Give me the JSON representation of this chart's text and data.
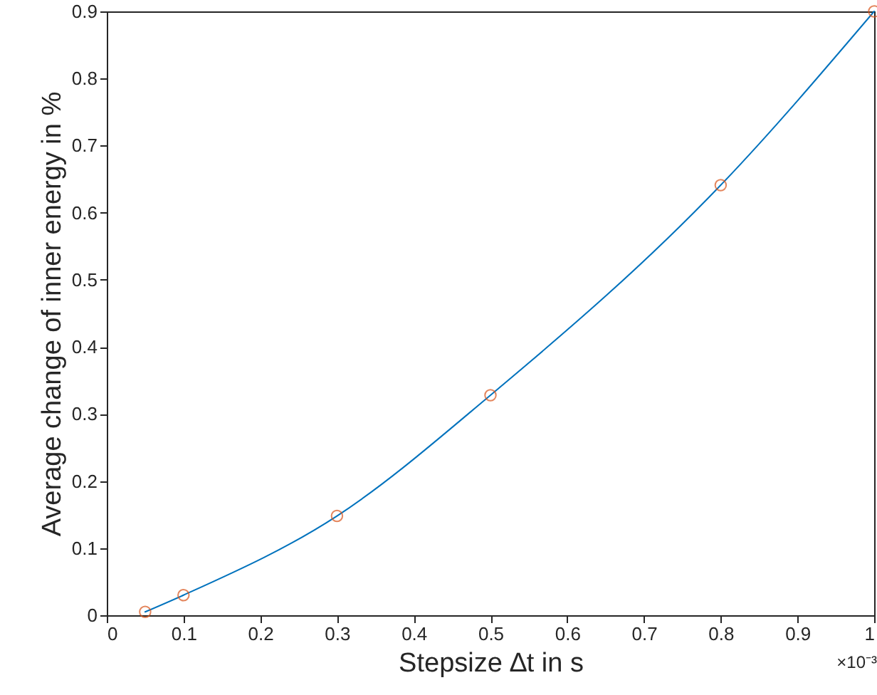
{
  "chart_data": {
    "type": "line",
    "xlabel": "Stepsize ∆t in s",
    "ylabel": "Average change of inner energy in %",
    "x": [
      0.05,
      0.1,
      0.3,
      0.5,
      0.8,
      1.0
    ],
    "series": [
      {
        "type": "line",
        "color": "#0072bd",
        "marker": "none",
        "values": [
          0.005,
          0.03,
          0.148,
          0.328,
          0.641,
          0.9
        ]
      },
      {
        "type": "scatter",
        "color": "#d95319",
        "marker": "circle",
        "values": [
          0.005,
          0.03,
          0.148,
          0.328,
          0.641,
          0.9
        ]
      }
    ],
    "xlim": [
      0,
      1
    ],
    "ylim": [
      0,
      0.9
    ],
    "xticks": [
      0,
      0.1,
      0.2,
      0.3,
      0.4,
      0.5,
      0.6,
      0.7,
      0.8,
      0.9,
      1
    ],
    "yticks": [
      0,
      0.1,
      0.2,
      0.3,
      0.4,
      0.5,
      0.6,
      0.7,
      0.8,
      0.9
    ],
    "grid": false,
    "annotations": [
      "×10⁻³"
    ]
  }
}
